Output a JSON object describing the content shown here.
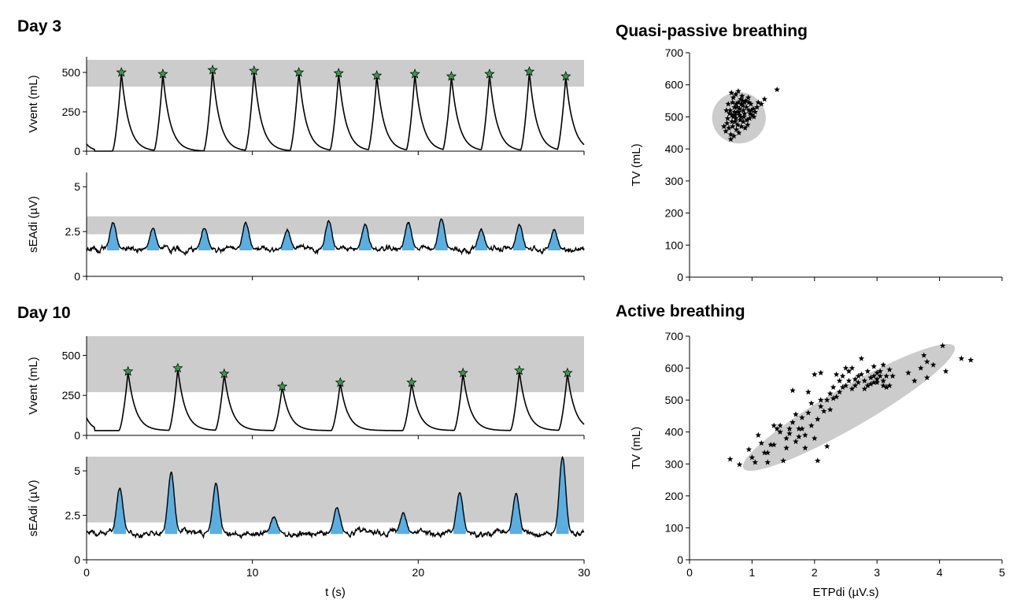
{
  "figure": {
    "day3_title": "Day 3",
    "day10_title": "Day 10",
    "quasi_title": "Quasi-passive breathing",
    "active_title": "Active breathing"
  },
  "colors": {
    "band": "#cccccc",
    "fill": "#5aaee0",
    "marker": "#3a9a4a",
    "line": "#000000"
  },
  "chart_data": [
    {
      "id": "day3-vvent",
      "type": "line",
      "title": "Day 3",
      "xlabel": "",
      "ylabel": "Vvent (mL)",
      "xlim": [
        0,
        30
      ],
      "ylim": [
        0,
        600
      ],
      "yticks": [
        0,
        250,
        500
      ],
      "ytick_labels": [
        "0",
        "250",
        "500"
      ],
      "xticks": [
        0,
        10,
        20,
        30
      ],
      "band": [
        410,
        580
      ],
      "baseline": 0,
      "peaks": [
        [
          2.1,
          500
        ],
        [
          4.6,
          490
        ],
        [
          7.6,
          515
        ],
        [
          10.1,
          510
        ],
        [
          12.8,
          500
        ],
        [
          15.2,
          495
        ],
        [
          17.5,
          480
        ],
        [
          19.8,
          490
        ],
        [
          22.0,
          475
        ],
        [
          24.3,
          490
        ],
        [
          26.7,
          505
        ],
        [
          28.9,
          475
        ]
      ],
      "peak_markers": true
    },
    {
      "id": "day3-seadi",
      "type": "line",
      "xlabel": "",
      "ylabel": "sEAdi (µV)",
      "xlim": [
        0,
        30
      ],
      "ylim": [
        0,
        5.8
      ],
      "yticks": [
        0,
        2.5,
        5
      ],
      "ytick_labels": [
        "0",
        "2.5",
        "5"
      ],
      "xticks": [
        0,
        10,
        20,
        30
      ],
      "band": [
        2.35,
        3.35
      ],
      "baseline": 1.5,
      "fill_base": 1.45,
      "peaks": [
        [
          1.6,
          3.0
        ],
        [
          4.0,
          2.7
        ],
        [
          7.1,
          2.7
        ],
        [
          9.6,
          3.0
        ],
        [
          12.1,
          2.6
        ],
        [
          14.6,
          3.1
        ],
        [
          16.8,
          2.9
        ],
        [
          19.4,
          3.0
        ],
        [
          21.4,
          3.2
        ],
        [
          23.8,
          2.6
        ],
        [
          26.1,
          2.9
        ],
        [
          28.2,
          2.6
        ]
      ],
      "peak_markers": false
    },
    {
      "id": "day10-vvent",
      "type": "line",
      "title": "Day 10",
      "xlabel": "",
      "ylabel": "Vvent (mL)",
      "xlim": [
        0,
        30
      ],
      "ylim": [
        0,
        620
      ],
      "yticks": [
        0,
        250,
        500
      ],
      "ytick_labels": [
        "0",
        "250",
        "500"
      ],
      "xticks": [
        0,
        10,
        20,
        30
      ],
      "band": [
        270,
        620
      ],
      "baseline": 30,
      "peaks": [
        [
          2.5,
          400
        ],
        [
          5.5,
          420
        ],
        [
          8.3,
          385
        ],
        [
          11.8,
          305
        ],
        [
          15.3,
          330
        ],
        [
          19.6,
          330
        ],
        [
          22.7,
          390
        ],
        [
          26.1,
          405
        ],
        [
          29.0,
          390
        ]
      ],
      "peak_markers": true
    },
    {
      "id": "day10-seadi",
      "type": "line",
      "xlabel": "t (s)",
      "ylabel": "sEAdi (µV)",
      "xlim": [
        0,
        30
      ],
      "ylim": [
        0,
        5.8
      ],
      "yticks": [
        0,
        2.5,
        5
      ],
      "ytick_labels": [
        "0",
        "2.5",
        "5"
      ],
      "xticks": [
        0,
        10,
        20,
        30
      ],
      "xtick_labels": [
        "0",
        "10",
        "20",
        "30"
      ],
      "band": [
        2.1,
        5.8
      ],
      "baseline": 1.5,
      "fill_base": 1.45,
      "peaks": [
        [
          2.0,
          4.0
        ],
        [
          5.1,
          4.9
        ],
        [
          7.8,
          4.3
        ],
        [
          11.3,
          2.4
        ],
        [
          15.1,
          2.9
        ],
        [
          19.1,
          2.6
        ],
        [
          22.5,
          3.8
        ],
        [
          25.9,
          3.7
        ],
        [
          28.7,
          5.8
        ]
      ],
      "peak_markers": false
    },
    {
      "id": "quasi-scatter",
      "type": "scatter",
      "title": "Quasi-passive breathing",
      "xlabel": "",
      "ylabel": "TV (mL)",
      "xlim": [
        0,
        5
      ],
      "ylim": [
        0,
        700
      ],
      "yticks": [
        0,
        100,
        200,
        300,
        400,
        500,
        600,
        700
      ],
      "ytick_labels": [
        "0",
        "100",
        "200",
        "300",
        "400",
        "500",
        "600",
        "700"
      ],
      "xticks": [
        0,
        1,
        2,
        3,
        4,
        5
      ],
      "xtick_labels": [],
      "ellipse": {
        "cx": 0.79,
        "cy": 497,
        "rx": 0.43,
        "ry": 80
      },
      "points": [
        [
          0.62,
          540
        ],
        [
          0.65,
          520
        ],
        [
          0.68,
          505
        ],
        [
          0.7,
          560
        ],
        [
          0.72,
          530
        ],
        [
          0.74,
          495
        ],
        [
          0.76,
          515
        ],
        [
          0.78,
          545
        ],
        [
          0.8,
          525
        ],
        [
          0.82,
          500
        ],
        [
          0.85,
          535
        ],
        [
          0.88,
          510
        ],
        [
          0.9,
          550
        ],
        [
          0.92,
          490
        ],
        [
          0.95,
          520
        ],
        [
          0.98,
          540
        ],
        [
          1.0,
          505
        ],
        [
          0.55,
          470
        ],
        [
          0.58,
          455
        ],
        [
          0.6,
          480
        ],
        [
          0.63,
          465
        ],
        [
          0.66,
          445
        ],
        [
          0.69,
          470
        ],
        [
          0.71,
          440
        ],
        [
          0.73,
          485
        ],
        [
          0.75,
          460
        ],
        [
          0.77,
          475
        ],
        [
          0.79,
          450
        ],
        [
          0.81,
          490
        ],
        [
          0.83,
          470
        ],
        [
          0.86,
          485
        ],
        [
          0.89,
          465
        ],
        [
          0.93,
          475
        ],
        [
          0.96,
          495
        ],
        [
          1.02,
          525
        ],
        [
          1.05,
          515
        ],
        [
          1.1,
          545
        ],
        [
          1.15,
          540
        ],
        [
          1.2,
          555
        ],
        [
          1.4,
          585
        ],
        [
          0.67,
          575
        ],
        [
          0.74,
          570
        ],
        [
          0.84,
          565
        ],
        [
          0.78,
          580
        ],
        [
          0.64,
          510
        ],
        [
          0.7,
          500
        ],
        [
          0.76,
          530
        ],
        [
          0.82,
          555
        ],
        [
          0.88,
          545
        ],
        [
          0.94,
          560
        ],
        [
          0.99,
          520
        ],
        [
          0.61,
          495
        ],
        [
          0.68,
          485
        ],
        [
          0.72,
          515
        ],
        [
          0.8,
          505
        ],
        [
          0.86,
          520
        ],
        [
          0.91,
          530
        ],
        [
          0.97,
          510
        ],
        [
          1.03,
          500
        ],
        [
          0.75,
          540
        ],
        [
          0.83,
          540
        ],
        [
          0.69,
          545
        ],
        [
          0.59,
          520
        ],
        [
          0.87,
          500
        ],
        [
          0.73,
          505
        ],
        [
          0.79,
          515
        ],
        [
          0.85,
          550
        ],
        [
          0.95,
          545
        ],
        [
          1.08,
          530
        ],
        [
          0.66,
          430
        ]
      ]
    },
    {
      "id": "active-scatter",
      "type": "scatter",
      "title": "Active breathing",
      "xlabel": "ETPdi (µV.s)",
      "ylabel": "TV (mL)",
      "xlim": [
        0,
        5
      ],
      "ylim": [
        0,
        700
      ],
      "yticks": [
        0,
        100,
        200,
        300,
        400,
        500,
        600,
        700
      ],
      "ytick_labels": [
        "0",
        "100",
        "200",
        "300",
        "400",
        "500",
        "600",
        "700"
      ],
      "xticks": [
        0,
        1,
        2,
        3,
        4,
        5
      ],
      "xtick_labels": [
        "0",
        "1",
        "2",
        "3",
        "4",
        "5"
      ],
      "ellipse": {
        "cx": 2.55,
        "cy": 477,
        "rx": 1.95,
        "ry": 88,
        "angle_deg": -30
      },
      "points": [
        [
          0.65,
          315
        ],
        [
          0.8,
          298
        ],
        [
          0.95,
          345
        ],
        [
          1.0,
          320
        ],
        [
          1.05,
          305
        ],
        [
          1.1,
          390
        ],
        [
          1.2,
          335
        ],
        [
          1.25,
          305
        ],
        [
          1.3,
          360
        ],
        [
          1.35,
          420
        ],
        [
          1.4,
          410
        ],
        [
          1.5,
          310
        ],
        [
          1.55,
          380
        ],
        [
          1.6,
          395
        ],
        [
          1.65,
          430
        ],
        [
          1.7,
          370
        ],
        [
          1.75,
          410
        ],
        [
          1.8,
          445
        ],
        [
          1.85,
          390
        ],
        [
          1.9,
          460
        ],
        [
          1.95,
          420
        ],
        [
          2.0,
          380
        ],
        [
          2.05,
          310
        ],
        [
          2.1,
          480
        ],
        [
          2.15,
          465
        ],
        [
          2.2,
          355
        ],
        [
          2.25,
          520
        ],
        [
          2.3,
          540
        ],
        [
          2.35,
          510
        ],
        [
          2.4,
          560
        ],
        [
          2.45,
          575
        ],
        [
          2.5,
          545
        ],
        [
          2.55,
          590
        ],
        [
          2.6,
          535
        ],
        [
          2.65,
          565
        ],
        [
          2.7,
          555
        ],
        [
          2.75,
          580
        ],
        [
          2.8,
          560
        ],
        [
          2.85,
          545
        ],
        [
          2.9,
          570
        ],
        [
          2.95,
          555
        ],
        [
          3.0,
          565
        ],
        [
          3.05,
          590
        ],
        [
          3.1,
          560
        ],
        [
          3.15,
          575
        ],
        [
          3.2,
          545
        ],
        [
          3.5,
          585
        ],
        [
          3.7,
          600
        ],
        [
          3.75,
          640
        ],
        [
          3.8,
          570
        ],
        [
          4.05,
          670
        ],
        [
          4.35,
          630
        ],
        [
          4.5,
          625
        ],
        [
          4.1,
          590
        ],
        [
          1.65,
          530
        ],
        [
          1.9,
          525
        ],
        [
          2.0,
          580
        ],
        [
          2.1,
          585
        ],
        [
          2.3,
          505
        ],
        [
          2.6,
          600
        ],
        [
          2.75,
          630
        ],
        [
          2.85,
          590
        ],
        [
          2.95,
          575
        ],
        [
          3.0,
          555
        ],
        [
          3.1,
          610
        ],
        [
          3.2,
          595
        ],
        [
          1.45,
          400
        ],
        [
          1.55,
          350
        ],
        [
          1.75,
          385
        ],
        [
          1.85,
          350
        ],
        [
          2.05,
          440
        ],
        [
          2.2,
          500
        ],
        [
          2.4,
          525
        ],
        [
          2.55,
          560
        ],
        [
          2.65,
          545
        ],
        [
          2.8,
          535
        ],
        [
          2.9,
          550
        ],
        [
          3.05,
          575
        ],
        [
          3.25,
          575
        ],
        [
          3.6,
          560
        ],
        [
          3.9,
          610
        ],
        [
          1.35,
          360
        ],
        [
          1.6,
          410
        ],
        [
          1.7,
          455
        ],
        [
          1.95,
          490
        ],
        [
          2.25,
          470
        ],
        [
          2.45,
          540
        ],
        [
          2.7,
          575
        ],
        [
          2.95,
          605
        ],
        [
          3.15,
          540
        ],
        [
          1.15,
          365
        ],
        [
          1.25,
          335
        ],
        [
          1.45,
          420
        ],
        [
          2.35,
          580
        ],
        [
          2.5,
          600
        ],
        [
          3.0,
          585
        ],
        [
          3.1,
          545
        ],
        [
          3.8,
          620
        ],
        [
          1.8,
          410
        ],
        [
          2.1,
          500
        ]
      ]
    }
  ]
}
